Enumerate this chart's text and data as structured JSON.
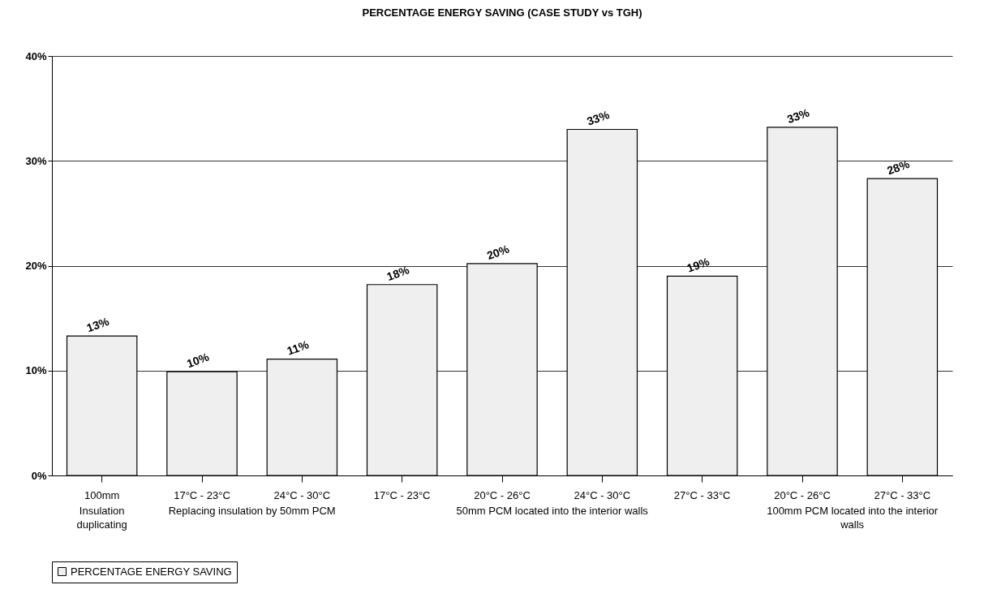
{
  "chart_data": {
    "type": "bar",
    "title": "PERCENTAGE ENERGY SAVING (CASE STUDY vs TGH)",
    "categories": [
      "100mm",
      "17°C - 23°C",
      "24°C - 30°C",
      "17°C - 23°C",
      "20°C - 26°C",
      "24°C - 30°C",
      "27°C - 33°C",
      "20°C - 26°C",
      "27°C - 33°C"
    ],
    "series": [
      {
        "name": "PERCENTAGE ENERGY SAVING",
        "color": "#efefef",
        "values": [
          13.3,
          9.9,
          11.1,
          18.2,
          20.2,
          33.0,
          19.0,
          33.2,
          28.3
        ]
      }
    ],
    "value_labels": [
      "13%",
      "10%",
      "11%",
      "18%",
      "20%",
      "33%",
      "19%",
      "33%",
      "28%"
    ],
    "ylim": [
      0,
      40
    ],
    "yticks": [
      {
        "value": 0,
        "label": "0%"
      },
      {
        "value": 10,
        "label": "10%"
      },
      {
        "value": 20,
        "label": "20%"
      },
      {
        "value": 30,
        "label": "30%"
      },
      {
        "value": 40,
        "label": "40%"
      }
    ],
    "annotations": [
      "Insulation duplicating",
      "Replacing insulation by 50mm PCM",
      "50mm PCM located into the interior walls",
      "100mm PCM located into the interior walls"
    ],
    "grid": "y",
    "legend": "bottom"
  }
}
